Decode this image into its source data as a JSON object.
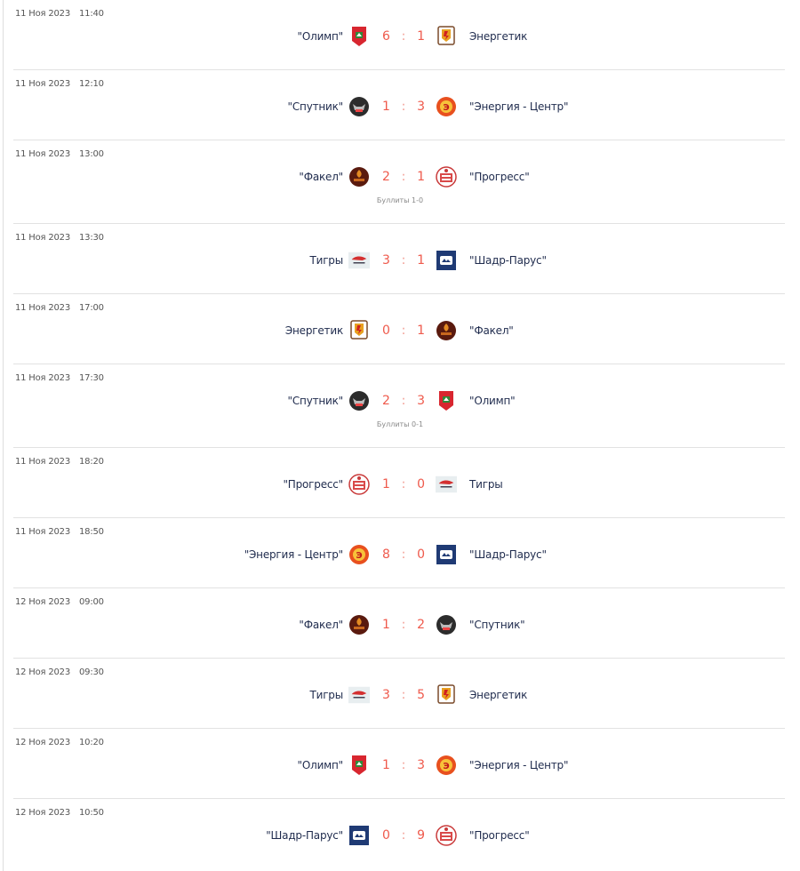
{
  "matches": [
    {
      "date": "11 Ноя 2023",
      "time": "11:40",
      "home": "\"Олимп\"",
      "home_logo": "olimp",
      "home_score": "6",
      "away_score": "1",
      "away": "Энергетик",
      "away_logo": "energetik"
    },
    {
      "date": "11 Ноя 2023",
      "time": "12:10",
      "home": "\"Спутник\"",
      "home_logo": "sputnik",
      "home_score": "1",
      "away_score": "3",
      "away": "\"Энергия - Центр\"",
      "away_logo": "energiya"
    },
    {
      "date": "11 Ноя 2023",
      "time": "13:00",
      "home": "\"Факел\"",
      "home_logo": "fakel",
      "home_score": "2",
      "away_score": "1",
      "away": "\"Прогресс\"",
      "away_logo": "progress",
      "shootout": "Буллиты 1-0"
    },
    {
      "date": "11 Ноя 2023",
      "time": "13:30",
      "home": "Тигры",
      "home_logo": "tigry",
      "home_score": "3",
      "away_score": "1",
      "away": "\"Шадр-Парус\"",
      "away_logo": "shadr"
    },
    {
      "date": "11 Ноя 2023",
      "time": "17:00",
      "home": "Энергетик",
      "home_logo": "energetik",
      "home_score": "0",
      "away_score": "1",
      "away": "\"Факел\"",
      "away_logo": "fakel"
    },
    {
      "date": "11 Ноя 2023",
      "time": "17:30",
      "home": "\"Спутник\"",
      "home_logo": "sputnik",
      "home_score": "2",
      "away_score": "3",
      "away": "\"Олимп\"",
      "away_logo": "olimp",
      "shootout": "Буллиты 0-1"
    },
    {
      "date": "11 Ноя 2023",
      "time": "18:20",
      "home": "\"Прогресс\"",
      "home_logo": "progress",
      "home_score": "1",
      "away_score": "0",
      "away": "Тигры",
      "away_logo": "tigry"
    },
    {
      "date": "11 Ноя 2023",
      "time": "18:50",
      "home": "\"Энергия - Центр\"",
      "home_logo": "energiya",
      "home_score": "8",
      "away_score": "0",
      "away": "\"Шадр-Парус\"",
      "away_logo": "shadr"
    },
    {
      "date": "12 Ноя 2023",
      "time": "09:00",
      "home": "\"Факел\"",
      "home_logo": "fakel",
      "home_score": "1",
      "away_score": "2",
      "away": "\"Спутник\"",
      "away_logo": "sputnik"
    },
    {
      "date": "12 Ноя 2023",
      "time": "09:30",
      "home": "Тигры",
      "home_logo": "tigry",
      "home_score": "3",
      "away_score": "5",
      "away": "Энергетик",
      "away_logo": "energetik"
    },
    {
      "date": "12 Ноя 2023",
      "time": "10:20",
      "home": "\"Олимп\"",
      "home_logo": "olimp",
      "home_score": "1",
      "away_score": "3",
      "away": "\"Энергия - Центр\"",
      "away_logo": "energiya"
    },
    {
      "date": "12 Ноя 2023",
      "time": "10:50",
      "home": "\"Шадр-Парус\"",
      "home_logo": "shadr",
      "home_score": "0",
      "away_score": "9",
      "away": "\"Прогресс\"",
      "away_logo": "progress"
    }
  ],
  "score_separator": ":",
  "colors": {
    "score": "#ef5a4c",
    "team_text": "#1f2b4d",
    "date_text": "#555555",
    "divider": "#e2e2e2"
  }
}
